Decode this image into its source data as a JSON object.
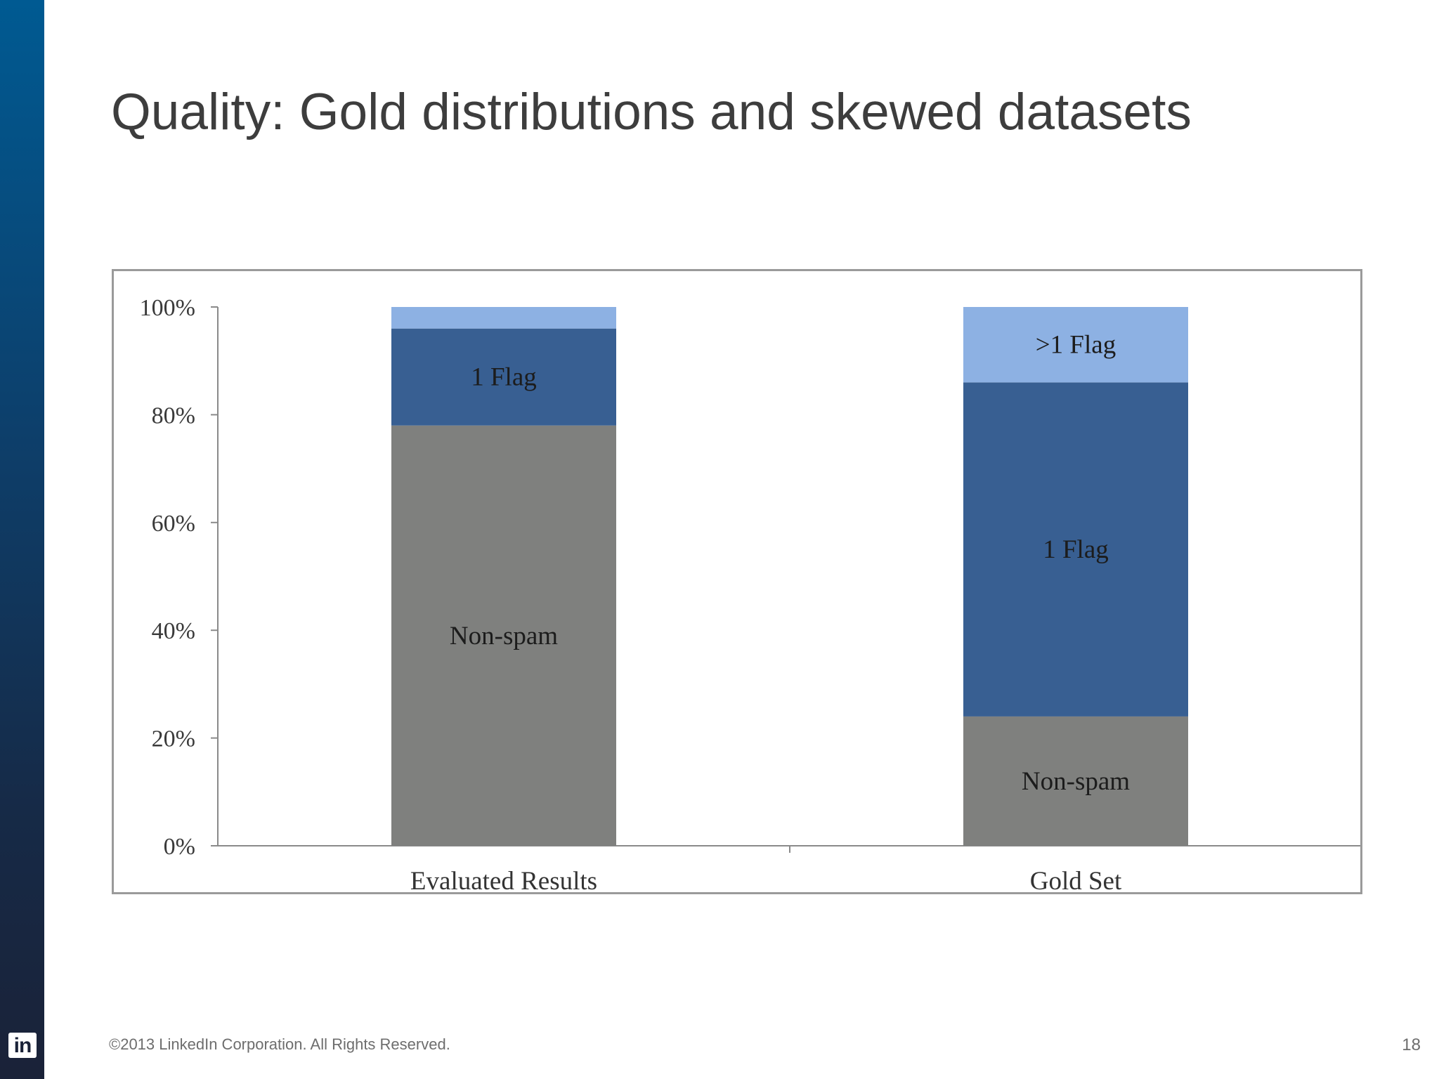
{
  "slide": {
    "title": "Quality: Gold distributions and skewed datasets",
    "footer": "©2013 LinkedIn Corporation. All Rights Reserved.",
    "page_number": "18",
    "logo_text": "in"
  },
  "colors": {
    "sidebar_top": "#005a92",
    "sidebar_bottom": "#1a2238",
    "non_spam": "#7f807e",
    "one_flag": "#385f92",
    "more_flags": "#8db1e3",
    "axis": "#8a8a8a"
  },
  "chart_data": {
    "type": "bar",
    "stacked": true,
    "categories": [
      "Evaluated Results",
      "Gold Set"
    ],
    "yaxis": {
      "ylim": [
        0,
        100
      ],
      "ticks": [
        0,
        20,
        40,
        60,
        80,
        100
      ],
      "tick_labels": [
        "0%",
        "20%",
        "40%",
        "60%",
        "80%",
        "100%"
      ]
    },
    "grid": false,
    "legend": "none",
    "series": [
      {
        "color_key": "non_spam",
        "values": [
          78,
          24
        ],
        "labels": [
          "Non-spam",
          "Non-spam"
        ]
      },
      {
        "color_key": "one_flag",
        "values": [
          18,
          62
        ],
        "labels": [
          "1 Flag",
          "1 Flag"
        ]
      },
      {
        "color_key": "more_flags",
        "values": [
          4,
          14
        ],
        "labels": [
          "",
          ">1 Flag"
        ]
      }
    ]
  }
}
